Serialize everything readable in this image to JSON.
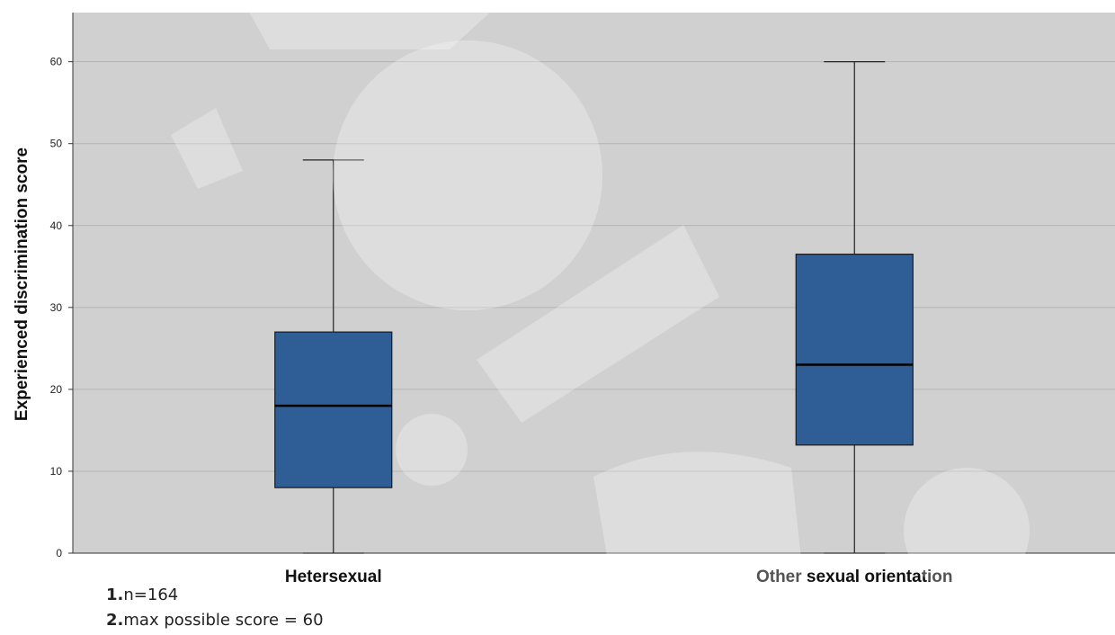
{
  "chart_data": {
    "type": "boxplot",
    "title": "",
    "ylabel": "Experienced discrimination score",
    "xlabel": "",
    "ylim": [
      0,
      66
    ],
    "yticks": [
      0,
      10,
      20,
      30,
      40,
      50,
      60
    ],
    "grid": true,
    "categories": [
      "Hetersexual",
      "Other sexual orientation"
    ],
    "boxes": [
      {
        "category": "Hetersexual",
        "min": 0,
        "q1": 8,
        "median": 18,
        "q3": 27,
        "max": 48
      },
      {
        "category": "Other sexual orientation",
        "min": 0,
        "q1": 13.2,
        "median": 23,
        "q3": 36.5,
        "max": 60
      }
    ],
    "colors": {
      "box_fill": "#2f5e97",
      "plot_bg": "#d0d0d0",
      "grid": "#b3b3b3"
    }
  },
  "notes": [
    {
      "num": "1.",
      "text": "n=164"
    },
    {
      "num": "2.",
      "text": "max possible score = 60"
    }
  ]
}
